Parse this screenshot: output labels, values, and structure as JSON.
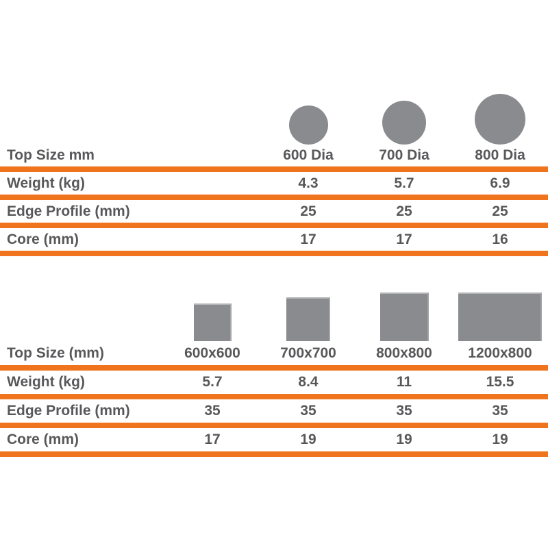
{
  "colors": {
    "divider_orange": "#F0731E",
    "shape_gray": "#8A8B8E",
    "text_gray": "#58585B"
  },
  "round_table": {
    "corner_label": "Top Size mm",
    "columns": [
      "600 Dia",
      "700 Dia",
      "800 Dia"
    ],
    "shape_icons": [
      "circle-small",
      "circle-medium",
      "circle-large"
    ],
    "rows": [
      {
        "label": "Weight (kg)",
        "values": [
          "4.3",
          "5.7",
          "6.9"
        ]
      },
      {
        "label": "Edge Profile (mm)",
        "values": [
          "25",
          "25",
          "25"
        ]
      },
      {
        "label": "Core (mm)",
        "values": [
          "17",
          "17",
          "16"
        ]
      }
    ]
  },
  "rect_table": {
    "corner_label": "Top Size (mm)",
    "columns": [
      "600x600",
      "700x700",
      "800x800",
      "1200x800"
    ],
    "shape_icons": [
      "square-small",
      "square-medium",
      "square-large",
      "rectangle-wide"
    ],
    "rows": [
      {
        "label": "Weight (kg)",
        "values": [
          "5.7",
          "8.4",
          "11",
          "15.5"
        ]
      },
      {
        "label": "Edge Profile (mm)",
        "values": [
          "35",
          "35",
          "35",
          "35"
        ]
      },
      {
        "label": "Core (mm)",
        "values": [
          "17",
          "19",
          "19",
          "19"
        ]
      }
    ]
  }
}
